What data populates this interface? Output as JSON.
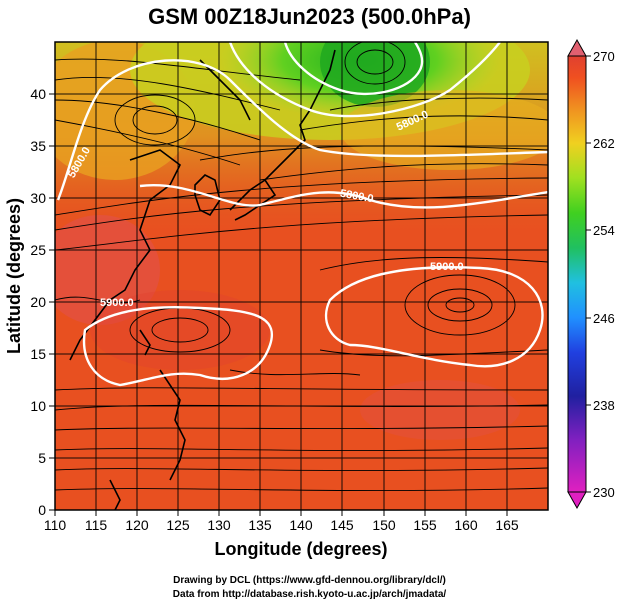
{
  "title": "GSM 00Z18Jun2023 (500.0hPa)",
  "axes": {
    "xlabel": "Longitude (degrees)",
    "ylabel": "Latitude (degrees)",
    "xticks": [
      "110",
      "115",
      "120",
      "125",
      "130",
      "135",
      "140",
      "145",
      "150",
      "155",
      "160",
      "165"
    ],
    "yticks": [
      "0",
      "5",
      "10",
      "15",
      "20",
      "25",
      "30",
      "35",
      "40",
      "45"
    ],
    "xlim": [
      110,
      170
    ],
    "ylim": [
      0,
      50
    ]
  },
  "colorbar": {
    "ticks": [
      "230",
      "238",
      "246",
      "254",
      "262",
      "270"
    ],
    "range": [
      230,
      270
    ],
    "colors": [
      "#e020c0",
      "#2020a0",
      "#2080ff",
      "#20c0ff",
      "#20d040",
      "#80e020",
      "#f0e020",
      "#f0a020",
      "#f06020",
      "#e03020",
      "#e06070"
    ]
  },
  "contours": {
    "labels": [
      "5800.0",
      "5800.0",
      "5900.0",
      "5900.0",
      "5800.0"
    ]
  },
  "credits": {
    "line1": "Drawing by DCL (https://www.gfd-dennou.org/library/dcl/)",
    "line2": "Data from http://database.rish.kyoto-u.ac.jp/arch/jmadata/"
  }
}
